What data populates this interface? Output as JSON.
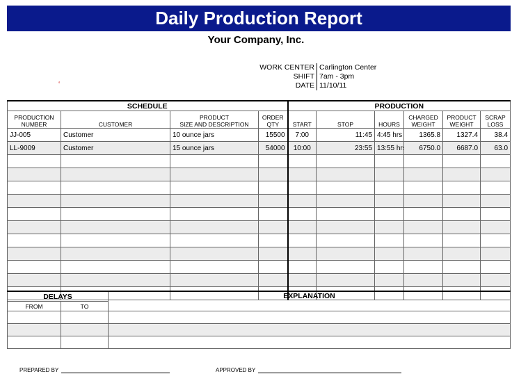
{
  "title": "Daily Production Report",
  "company": "Your Company, Inc.",
  "info": [
    {
      "label": "WORK CENTER",
      "value": "Carlington Center"
    },
    {
      "label": "SHIFT",
      "value": "7am - 3pm"
    },
    {
      "label": "DATE",
      "value": "11/10/11"
    }
  ],
  "main": {
    "section_schedule": "SCHEDULE",
    "section_production": "PRODUCTION",
    "headers": {
      "production_number": [
        "PRODUCTION",
        "NUMBER"
      ],
      "customer": "CUSTOMER",
      "product": [
        "PRODUCT",
        "SIZE AND DESCRIPTION"
      ],
      "order_qty": [
        "ORDER",
        "QTY"
      ],
      "start": "START",
      "stop": "STOP",
      "hours": "HOURS",
      "charged_weight": [
        "CHARGED",
        "WEIGHT"
      ],
      "product_weight": [
        "PRODUCT",
        "WEIGHT"
      ],
      "scrap_loss": [
        "SCRAP",
        "LOSS"
      ]
    },
    "rows": [
      {
        "num": "JJ-005",
        "customer": "Customer",
        "product": "10 ounce jars",
        "qty": "15500",
        "start": "7:00",
        "stop": "11:45",
        "hours": "4:45 hrs",
        "charged": "1365.8",
        "pweight": "1327.4",
        "scrap": "38.4"
      },
      {
        "num": "LL-9009",
        "customer": "Customer",
        "product": "15 ounce jars",
        "qty": "54000",
        "start": "10:00",
        "stop": "23:55",
        "hours": "13:55 hrs",
        "charged": "6750.0",
        "pweight": "6687.0",
        "scrap": "63.0"
      }
    ]
  },
  "delays": {
    "title": "DELAYS",
    "from": "FROM",
    "to": "TO",
    "explanation": "EXPLANATION"
  },
  "signatures": {
    "prepared_by": "PREPARED BY",
    "approved_by": "APPROVED BY"
  }
}
